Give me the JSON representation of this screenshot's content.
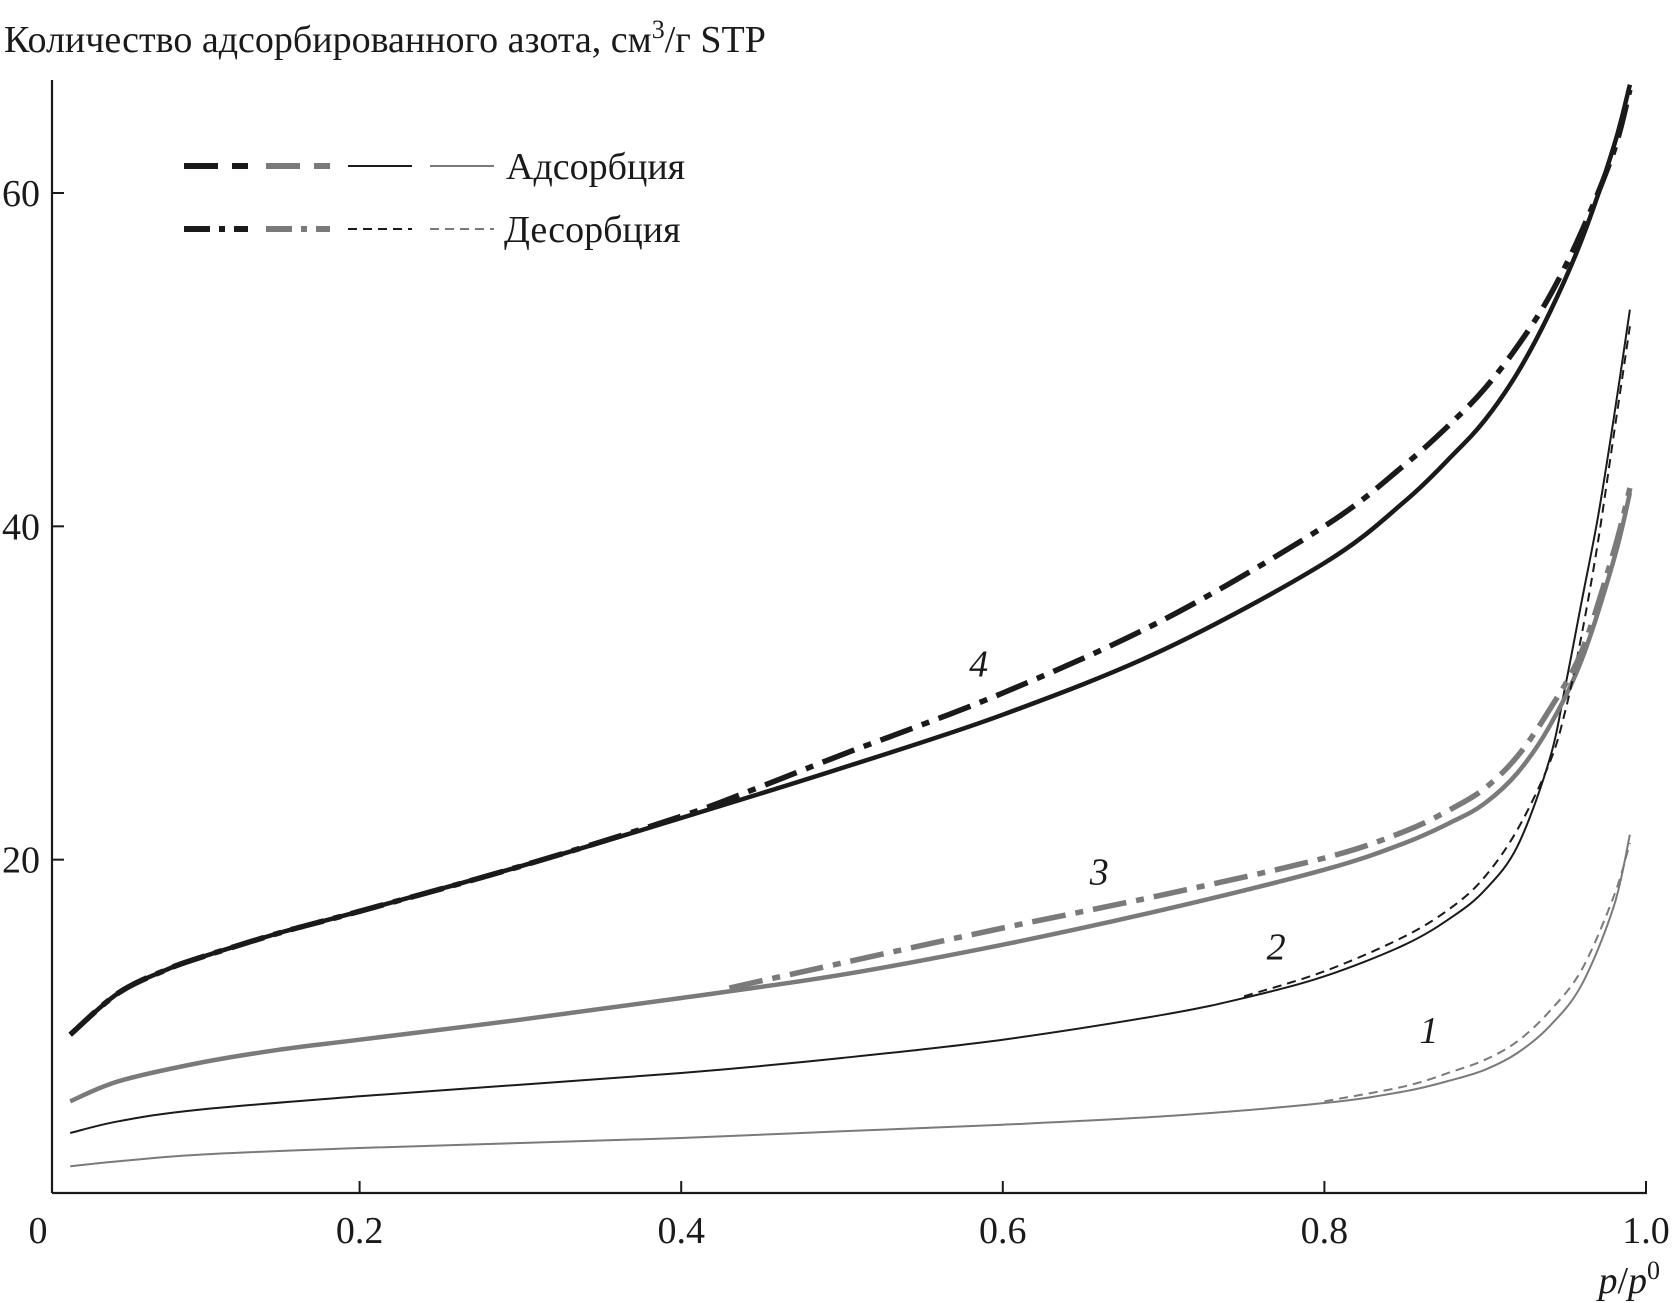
{
  "chart_data": {
    "type": "line",
    "ylabel": "Количество адсорбированного азота, см",
    "ylabel_sup": "3",
    "ylabel_suffix": "/г STP",
    "xlabel_p": "p",
    "xlabel_slash": "/",
    "xlabel_p2": "p",
    "xlabel_sup": "0",
    "xlim": [
      0,
      1.0
    ],
    "ylim": [
      0,
      67
    ],
    "x_ticks": [
      0,
      0.2,
      0.4,
      0.6,
      0.8,
      1.0
    ],
    "x_tick_labels": [
      "0",
      "0.2",
      "0.4",
      "0.6",
      "0.8",
      "1.0"
    ],
    "y_ticks": [
      20,
      40,
      60
    ],
    "y_tick_labels": [
      "20",
      "40",
      "60"
    ],
    "grid": false,
    "legend_position": "top-left",
    "legend": [
      {
        "label": "Адсорбция",
        "styles": [
          "thick-black-dashed",
          "thick-gray-dashed",
          "thin-black-solid",
          "thin-gray-solid"
        ]
      },
      {
        "label": "Десорбция",
        "styles": [
          "thick-black-dashdot",
          "thick-gray-dashdot",
          "thin-black-dashed",
          "thin-gray-dashed"
        ]
      }
    ],
    "colors": {
      "black": "#1a1a1a",
      "gray": "#7a7a7a"
    },
    "series": [
      {
        "label": "1",
        "branch": "adsorption",
        "x": [
          0.02,
          0.05,
          0.1,
          0.2,
          0.3,
          0.4,
          0.5,
          0.6,
          0.7,
          0.8,
          0.85,
          0.88,
          0.9,
          0.92,
          0.94,
          0.96,
          0.98,
          0.99
        ],
        "y": [
          1.6,
          1.9,
          2.3,
          2.7,
          3.0,
          3.3,
          3.7,
          4.1,
          4.6,
          5.4,
          6.1,
          6.8,
          7.4,
          8.4,
          10.0,
          12.5,
          17.2,
          21.5
        ]
      },
      {
        "label": "1",
        "branch": "desorption",
        "x": [
          0.8,
          0.85,
          0.88,
          0.9,
          0.92,
          0.94,
          0.96,
          0.98,
          0.99
        ],
        "y": [
          5.5,
          6.4,
          7.3,
          8.0,
          9.1,
          10.9,
          13.4,
          17.8,
          21.0
        ]
      },
      {
        "label": "2",
        "branch": "adsorption",
        "x": [
          0.02,
          0.05,
          0.1,
          0.2,
          0.3,
          0.4,
          0.5,
          0.6,
          0.7,
          0.75,
          0.8,
          0.85,
          0.88,
          0.9,
          0.92,
          0.94,
          0.95,
          0.96,
          0.97,
          0.98,
          0.99
        ],
        "y": [
          3.6,
          4.3,
          5.0,
          5.8,
          6.5,
          7.2,
          8.1,
          9.2,
          10.7,
          11.7,
          13.0,
          14.9,
          16.6,
          18.2,
          20.8,
          26.0,
          30.5,
          35.5,
          40.5,
          46.5,
          53.0
        ]
      },
      {
        "label": "2",
        "branch": "desorption",
        "x": [
          0.75,
          0.8,
          0.85,
          0.88,
          0.9,
          0.92,
          0.94,
          0.95,
          0.96,
          0.97,
          0.98,
          0.99
        ],
        "y": [
          11.8,
          13.3,
          15.4,
          17.2,
          19.0,
          21.8,
          25.8,
          29.0,
          33.5,
          39.0,
          45.5,
          52.0
        ]
      },
      {
        "label": "3",
        "branch": "adsorption",
        "x": [
          0.02,
          0.05,
          0.1,
          0.15,
          0.2,
          0.3,
          0.4,
          0.5,
          0.6,
          0.7,
          0.8,
          0.85,
          0.88,
          0.9,
          0.92,
          0.94,
          0.96,
          0.98,
          0.99
        ],
        "y": [
          5.5,
          6.7,
          7.8,
          8.6,
          9.2,
          10.4,
          11.7,
          13.1,
          14.9,
          17.0,
          19.4,
          21.0,
          22.3,
          23.4,
          25.2,
          28.0,
          32.0,
          38.0,
          42.0
        ]
      },
      {
        "label": "3",
        "branch": "desorption",
        "x": [
          0.43,
          0.5,
          0.6,
          0.7,
          0.8,
          0.85,
          0.88,
          0.9,
          0.92,
          0.94,
          0.96,
          0.98,
          0.99
        ],
        "y": [
          12.3,
          13.8,
          15.9,
          17.9,
          20.1,
          21.7,
          23.1,
          24.3,
          26.2,
          29.0,
          32.5,
          38.5,
          42.3
        ]
      },
      {
        "label": "4",
        "branch": "adsorption",
        "x": [
          0.02,
          0.05,
          0.08,
          0.1,
          0.15,
          0.2,
          0.3,
          0.4,
          0.5,
          0.6,
          0.7,
          0.8,
          0.85,
          0.88,
          0.9,
          0.92,
          0.94,
          0.96,
          0.98,
          0.99
        ],
        "y": [
          9.5,
          12.0,
          13.4,
          14.1,
          15.6,
          16.9,
          19.6,
          22.5,
          25.5,
          28.7,
          32.6,
          37.8,
          41.5,
          44.3,
          46.4,
          49.2,
          52.8,
          57.2,
          62.8,
          66.5
        ]
      },
      {
        "label": "4",
        "branch": "desorption",
        "x": [
          0.02,
          0.05,
          0.08,
          0.1,
          0.15,
          0.2,
          0.3,
          0.4,
          0.45,
          0.5,
          0.6,
          0.7,
          0.8,
          0.85,
          0.88,
          0.9,
          0.92,
          0.94,
          0.96,
          0.98,
          0.99
        ],
        "y": [
          9.5,
          12.0,
          13.4,
          14.1,
          15.6,
          16.9,
          19.6,
          22.6,
          24.4,
          26.3,
          30.0,
          34.4,
          40.0,
          43.7,
          46.3,
          48.3,
          50.8,
          53.8,
          57.7,
          62.5,
          66.2
        ]
      }
    ],
    "curve_labels": [
      {
        "text": "1",
        "x": 0.865,
        "y": 9.0
      },
      {
        "text": "2",
        "x": 0.77,
        "y": 14.0
      },
      {
        "text": "3",
        "x": 0.66,
        "y": 18.5
      },
      {
        "text": "4",
        "x": 0.585,
        "y": 31.0
      }
    ]
  }
}
